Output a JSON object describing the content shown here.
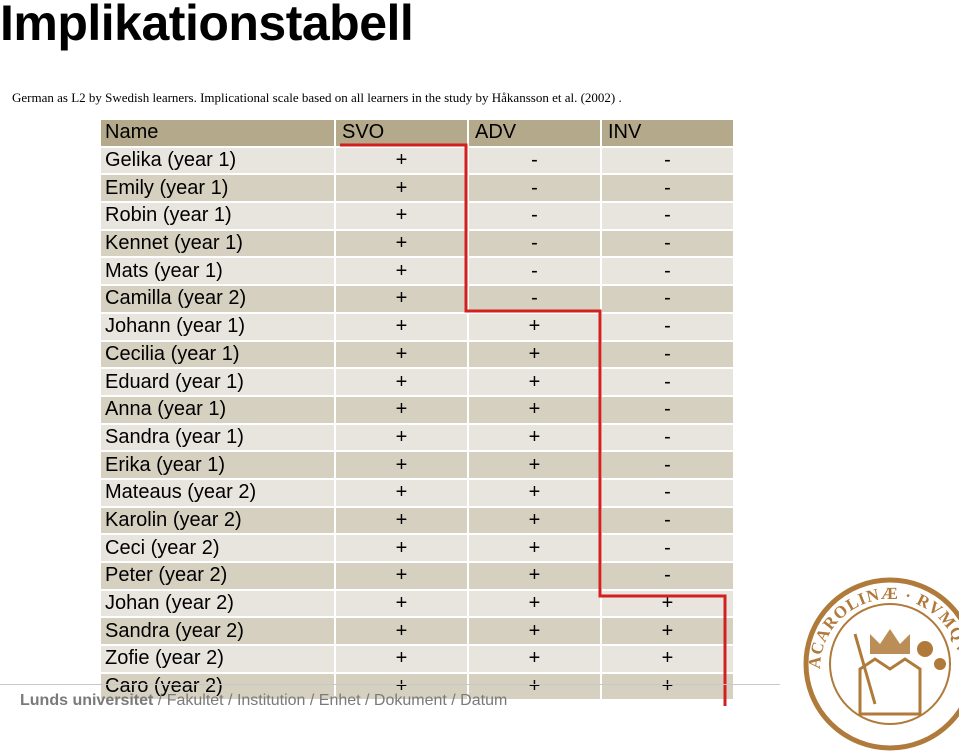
{
  "title": "Implikationstabell",
  "subtitle": "German as L2 by Swedish learners. Implicational scale based on all learners in the study by Håkansson et al. (2002) .",
  "table": {
    "headers": [
      "Name",
      "SVO",
      "ADV",
      "INV"
    ],
    "rows": [
      [
        "Gelika (year 1)",
        "+",
        "-",
        "-"
      ],
      [
        "Emily (year 1)",
        "+",
        "-",
        "-"
      ],
      [
        "Robin (year 1)",
        "+",
        "-",
        "-"
      ],
      [
        "Kennet (year 1)",
        "+",
        "-",
        "-"
      ],
      [
        "Mats (year 1)",
        "+",
        "-",
        "-"
      ],
      [
        "Camilla (year 2)",
        "+",
        "-",
        "-"
      ],
      [
        "Johann (year 1)",
        "+",
        "+",
        "-"
      ],
      [
        "Cecilia (year 1)",
        "+",
        "+",
        "-"
      ],
      [
        "Eduard (year 1)",
        "+",
        "+",
        "-"
      ],
      [
        "Anna (year 1)",
        "+",
        "+",
        "-"
      ],
      [
        "Sandra (year 1)",
        "+",
        "+",
        "-"
      ],
      [
        "Erika (year 1)",
        "+",
        "+",
        "-"
      ],
      [
        "Mateaus (year 2)",
        "+",
        "+",
        "-"
      ],
      [
        "Karolin (year 2)",
        "+",
        "+",
        "-"
      ],
      [
        "Ceci (year 2)",
        "+",
        "+",
        "-"
      ],
      [
        "Peter (year 2)",
        "+",
        "+",
        "-"
      ],
      [
        "Johan (year 2)",
        "+",
        "+",
        "+"
      ],
      [
        "Sandra (year 2)",
        "+",
        "+",
        "+"
      ],
      [
        "Zofie (year 2)",
        "+",
        "+",
        "+"
      ],
      [
        "Caro (year 2)",
        "+",
        "+",
        "+"
      ]
    ]
  },
  "footer": {
    "university": "Lunds universitet",
    "path": " / Fakultet / Institution / Enhet / Dokument / Datum"
  },
  "seal": {
    "text": "ACAROLINÆ · RVMQVE · SIGILL · ADVT ·"
  },
  "colors": {
    "header_bg": "#b4a98a",
    "row_light": "#e8e5de",
    "row_dark": "#d6d0c0",
    "implication_line": "#d21f1f",
    "seal": "#b07a3a"
  }
}
